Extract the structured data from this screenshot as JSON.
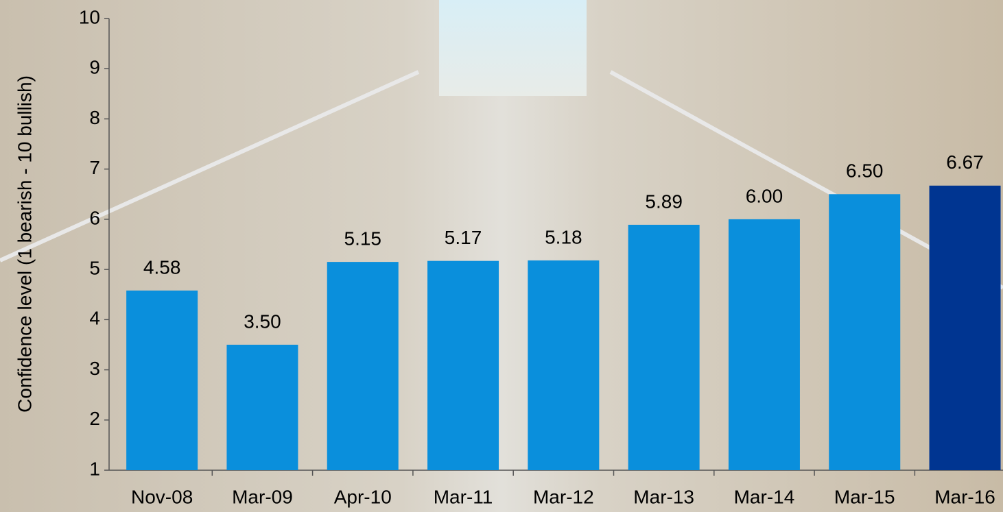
{
  "chart_data": {
    "type": "bar",
    "y_label": "Confidence level (1 bearish - 10 bullish)",
    "categories": [
      "Nov-08",
      "Mar-09",
      "Apr-10",
      "Mar-11",
      "Mar-12",
      "Mar-13",
      "Mar-14",
      "Mar-15",
      "Mar-16"
    ],
    "values": [
      4.58,
      3.5,
      5.15,
      5.17,
      5.18,
      5.89,
      6.0,
      6.5,
      6.67
    ],
    "value_labels": [
      "4.58",
      "3.50",
      "5.15",
      "5.17",
      "5.18",
      "5.89",
      "6.00",
      "6.50",
      "6.67"
    ],
    "colors": [
      "#0a8fdc",
      "#0a8fdc",
      "#0a8fdc",
      "#0a8fdc",
      "#0a8fdc",
      "#0a8fdc",
      "#0a8fdc",
      "#0a8fdc",
      "#003591"
    ],
    "ylim": [
      1,
      10
    ],
    "yticks": [
      1,
      2,
      3,
      4,
      5,
      6,
      7,
      8,
      9,
      10
    ],
    "grid": false
  }
}
